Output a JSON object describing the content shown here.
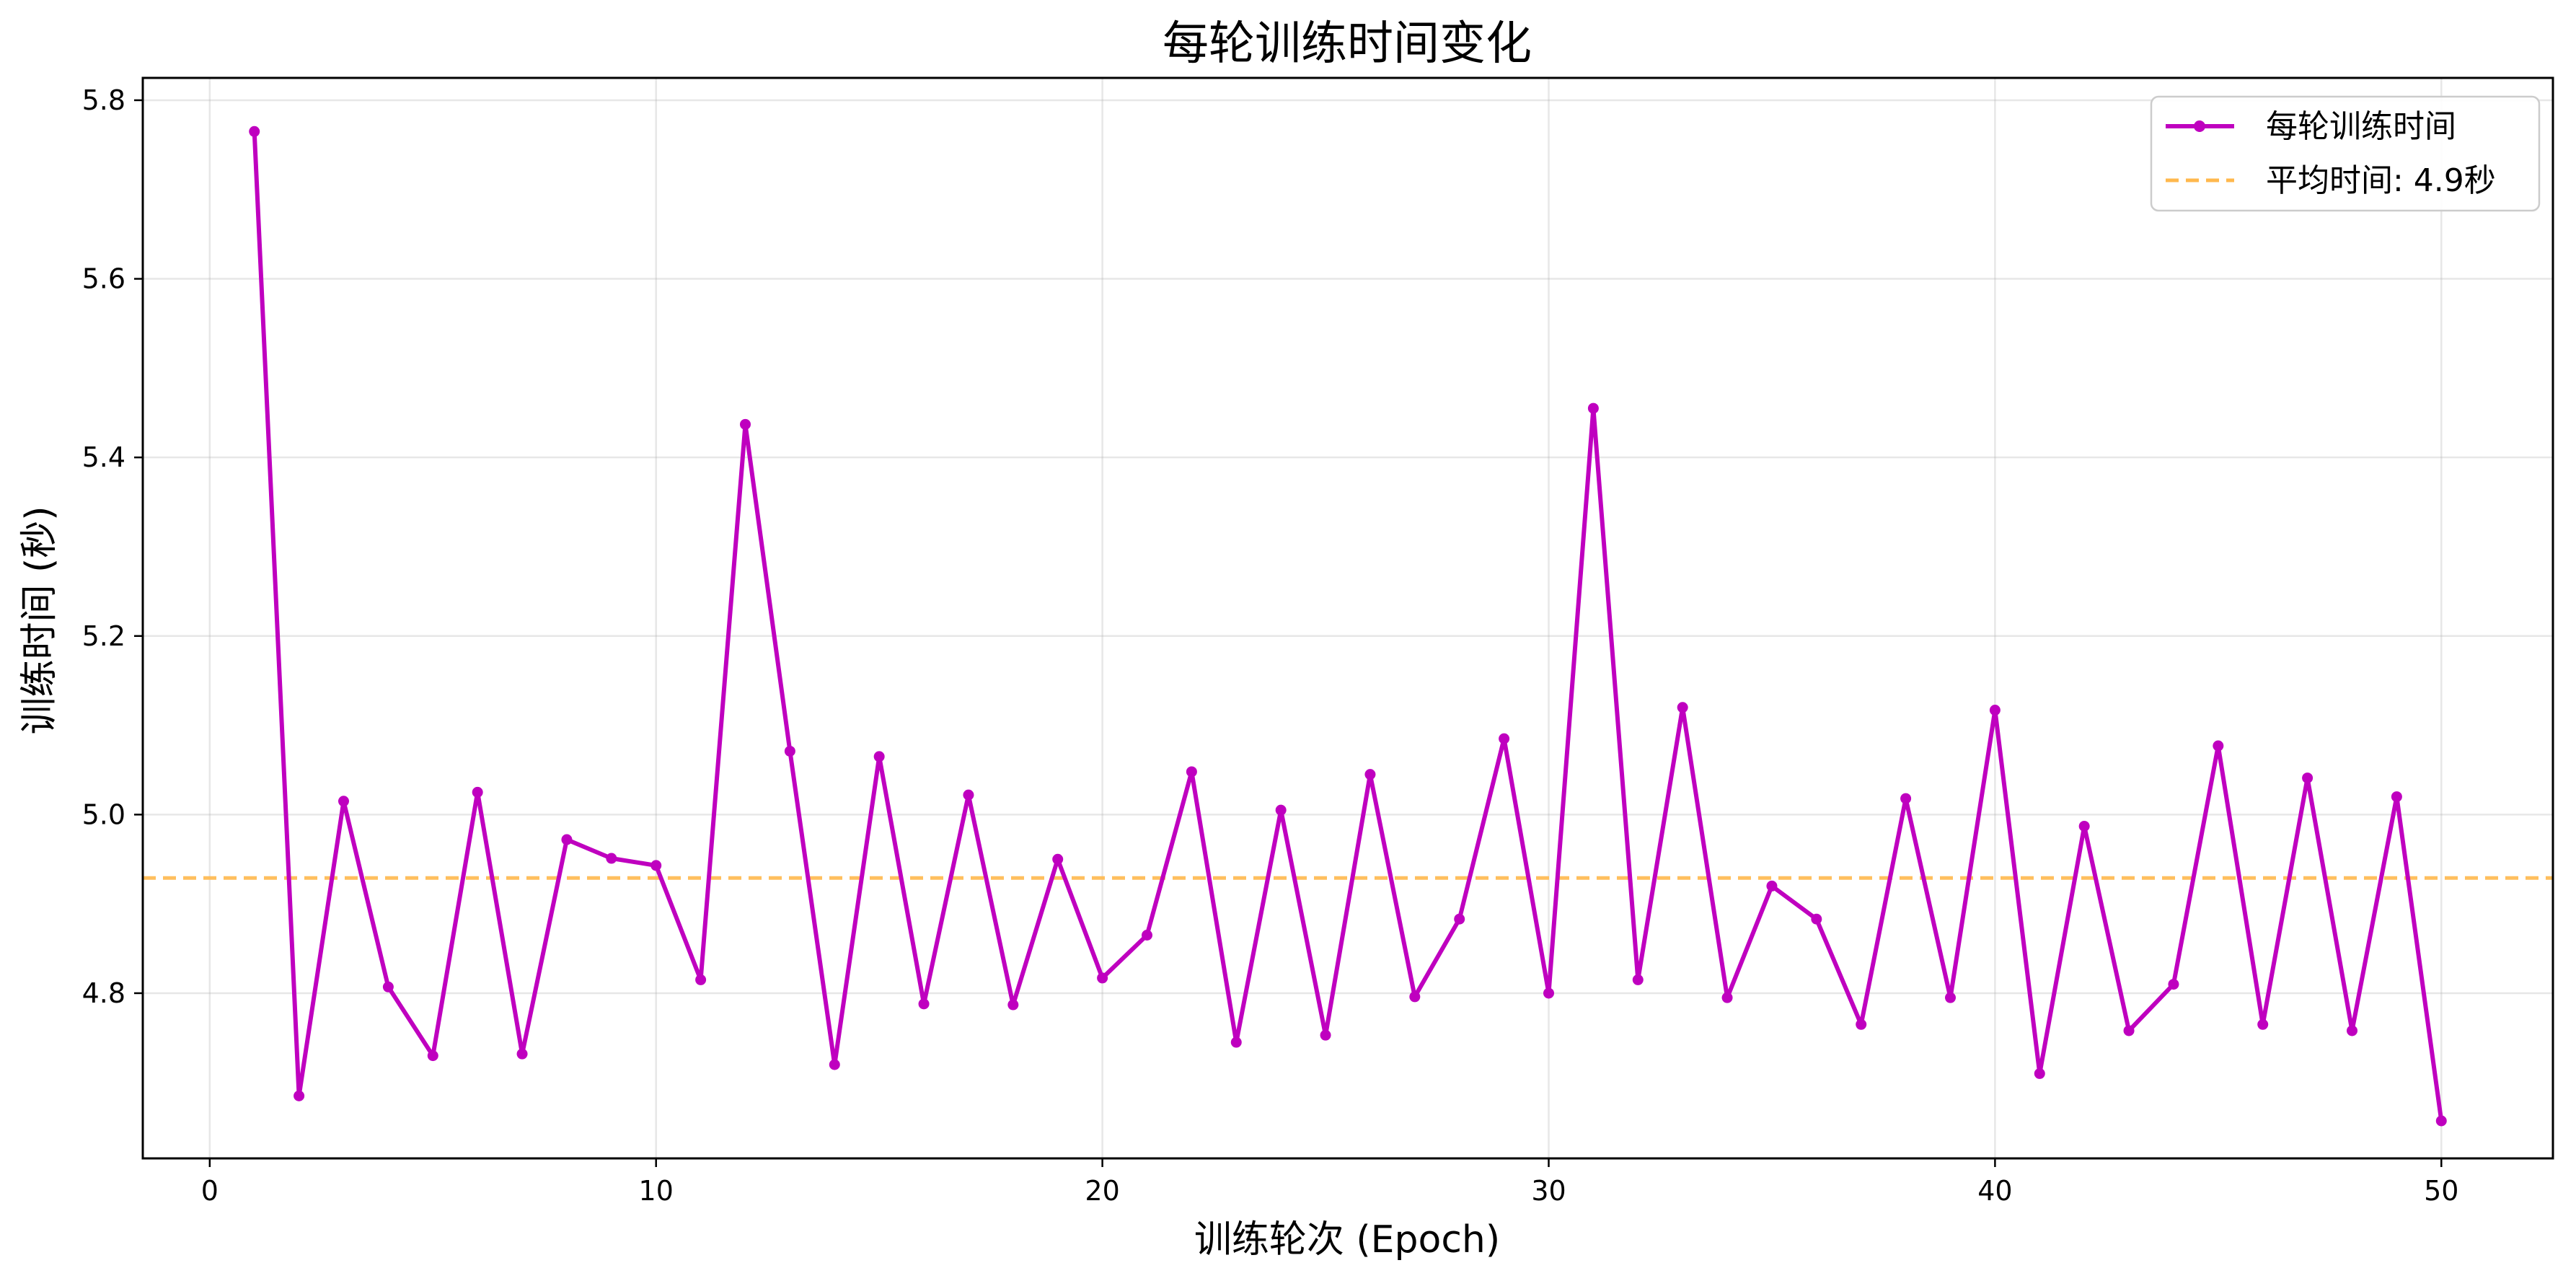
{
  "chart_data": {
    "type": "line",
    "title": "每轮训练时间变化",
    "xlabel": "训练轮次 (Epoch)",
    "ylabel": "训练时间 (秒)",
    "xlim": [
      -1.5,
      52.5
    ],
    "ylim": [
      4.615,
      5.825
    ],
    "xticks": [
      0,
      10,
      20,
      30,
      40,
      50
    ],
    "yticks": [
      4.8,
      5.0,
      5.2,
      5.4,
      5.6,
      5.8
    ],
    "ytick_labels": [
      "4.8",
      "5.0",
      "5.2",
      "5.4",
      "5.6",
      "5.8"
    ],
    "grid": true,
    "legend_position": "top-right",
    "x": [
      1,
      2,
      3,
      4,
      5,
      6,
      7,
      8,
      9,
      10,
      11,
      12,
      13,
      14,
      15,
      16,
      17,
      18,
      19,
      20,
      21,
      22,
      23,
      24,
      25,
      26,
      27,
      28,
      29,
      30,
      31,
      32,
      33,
      34,
      35,
      36,
      37,
      38,
      39,
      40,
      41,
      42,
      43,
      44,
      45,
      46,
      47,
      48,
      49,
      50
    ],
    "series": [
      {
        "name": "每轮训练时间",
        "color": "#bf00bf",
        "values": [
          5.765,
          4.685,
          5.015,
          4.807,
          4.73,
          5.025,
          4.732,
          4.972,
          4.951,
          4.943,
          4.815,
          5.437,
          5.071,
          4.72,
          5.065,
          4.788,
          5.022,
          4.787,
          4.95,
          4.817,
          4.865,
          5.048,
          4.745,
          5.005,
          4.753,
          5.045,
          4.796,
          4.883,
          5.085,
          4.8,
          5.455,
          4.815,
          5.12,
          4.795,
          4.92,
          4.883,
          4.765,
          5.018,
          4.795,
          5.117,
          4.71,
          4.987,
          4.758,
          4.81,
          5.077,
          4.765,
          5.041,
          4.758,
          5.02,
          4.657
        ]
      }
    ],
    "reference_line": {
      "name": "平均时间: 4.9秒",
      "value": 4.929,
      "color": "#ffb84d"
    }
  }
}
